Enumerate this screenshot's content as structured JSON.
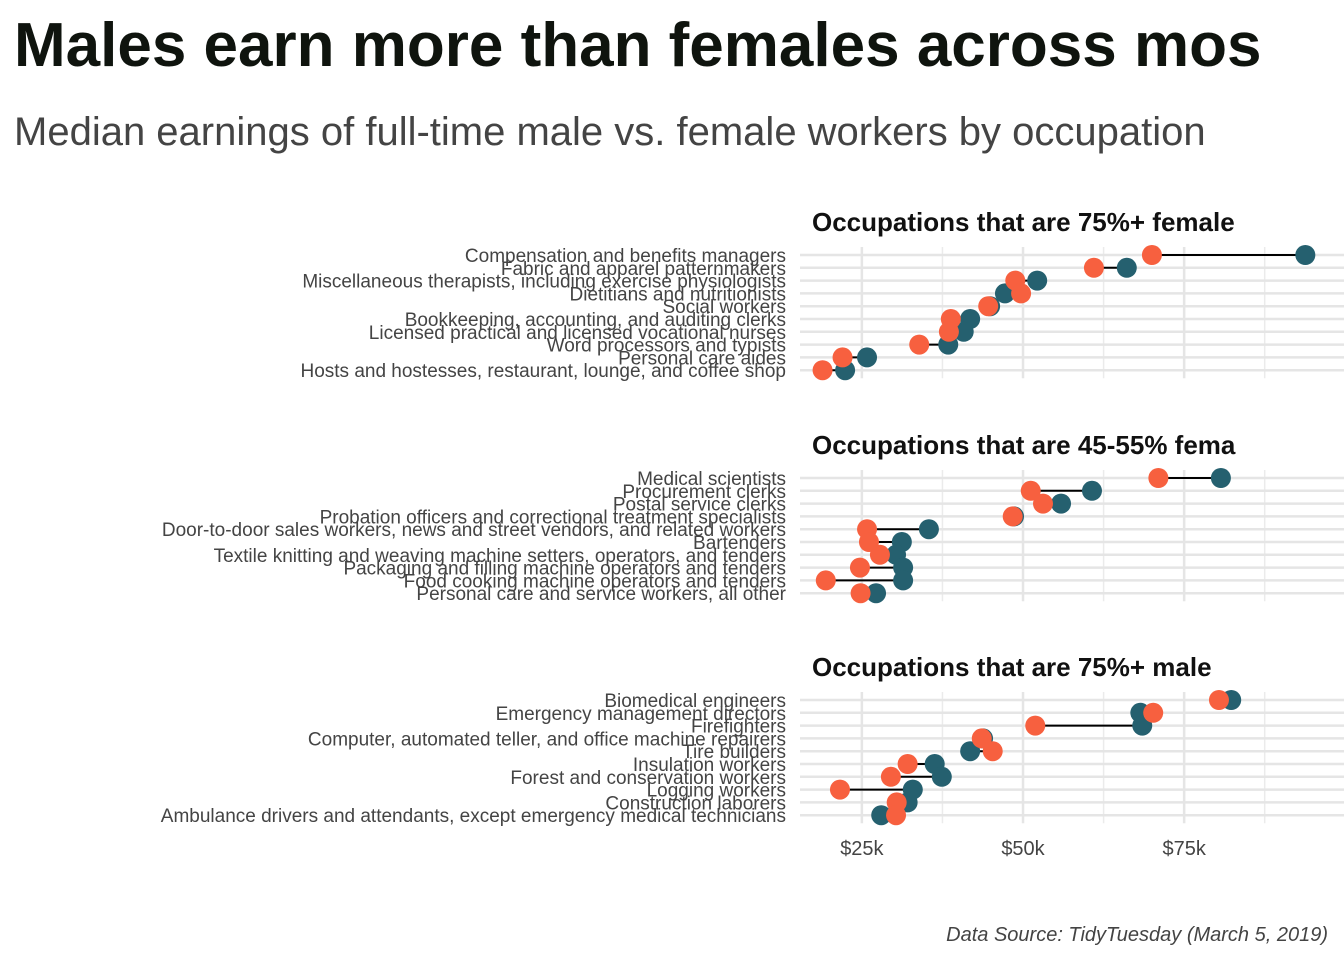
{
  "chart_data": {
    "type": "dumbbell",
    "title": "Males earn more than females across mos",
    "subtitle": "Median earnings of full-time male vs. female workers by occupation",
    "caption": "Data Source: TidyTuesday (March 5, 2019)",
    "xlim": [
      15400,
      99800
    ],
    "xticks": [
      {
        "value": 25000,
        "label": "$25k"
      },
      {
        "value": 50000,
        "label": "$50k"
      },
      {
        "value": 75000,
        "label": "$75k"
      }
    ],
    "minor_xticks": [
      37500,
      62500,
      87500
    ],
    "grid": true,
    "connector_color": "#000000",
    "panels": [
      {
        "title": "Occupations that are 75%+ female",
        "categories": [
          "Compensation and benefits managers",
          "Fabric and apparel patternmakers",
          "Miscellaneous therapists, including exercise physiologists",
          "Dietitians and nutritionists",
          "Social workers",
          "Bookkeeping, accounting, and auditing clerks",
          "Licensed practical and licensed vocational nurses",
          "Word processors and typists",
          "Personal care aides",
          "Hosts and hostesses, restaurant, lounge, and coffee shop"
        ],
        "series": [
          {
            "color": "#25606f",
            "values": [
              93800,
              66100,
              52200,
              47200,
              44900,
              41800,
              40800,
              38400,
              25800,
              22400
            ]
          },
          {
            "color": "#f7603f",
            "values": [
              70000,
              61000,
              48800,
              49700,
              44600,
              38800,
              38500,
              33900,
              22000,
              18900
            ]
          }
        ]
      },
      {
        "title": "Occupations that are 45-55% fema",
        "categories": [
          "Medical scientists",
          "Procurement clerks",
          "Postal service clerks",
          "Probation officers and correctional treatment specialists",
          "Door-to-door sales workers, news and street vendors, and related workers",
          "Bartenders",
          "Textile knitting and weaving machine setters, operators, and tenders",
          "Packaging and filling machine operators and tenders",
          "Food cooking machine operators and tenders",
          "Personal care and service workers, all other"
        ],
        "series": [
          {
            "color": "#25606f",
            "values": [
              80700,
              60700,
              55900,
              48600,
              35400,
              31200,
              30300,
              31400,
              31400,
              27200
            ]
          },
          {
            "color": "#f7603f",
            "values": [
              71000,
              51200,
              53100,
              48400,
              25800,
              26100,
              27800,
              24700,
              19400,
              24800
            ]
          }
        ]
      },
      {
        "title": "Occupations that are 75%+ male",
        "categories": [
          "Biomedical engineers",
          "Emergency management directors",
          "Firefighters",
          "Computer, automated teller, and office machine repairers",
          "Tire builders",
          "Insulation workers",
          "Forest and conservation workers",
          "Logging workers",
          "Construction laborers",
          "Ambulance drivers and attendants, except emergency medical technicians"
        ],
        "series": [
          {
            "color": "#25606f",
            "values": [
              82300,
              68200,
              68500,
              43800,
              41800,
              36300,
              37400,
              32900,
              32100,
              28000
            ]
          },
          {
            "color": "#f7603f",
            "values": [
              80400,
              70200,
              51900,
              43600,
              45300,
              32100,
              29500,
              21600,
              30400,
              30300
            ]
          }
        ]
      }
    ]
  }
}
